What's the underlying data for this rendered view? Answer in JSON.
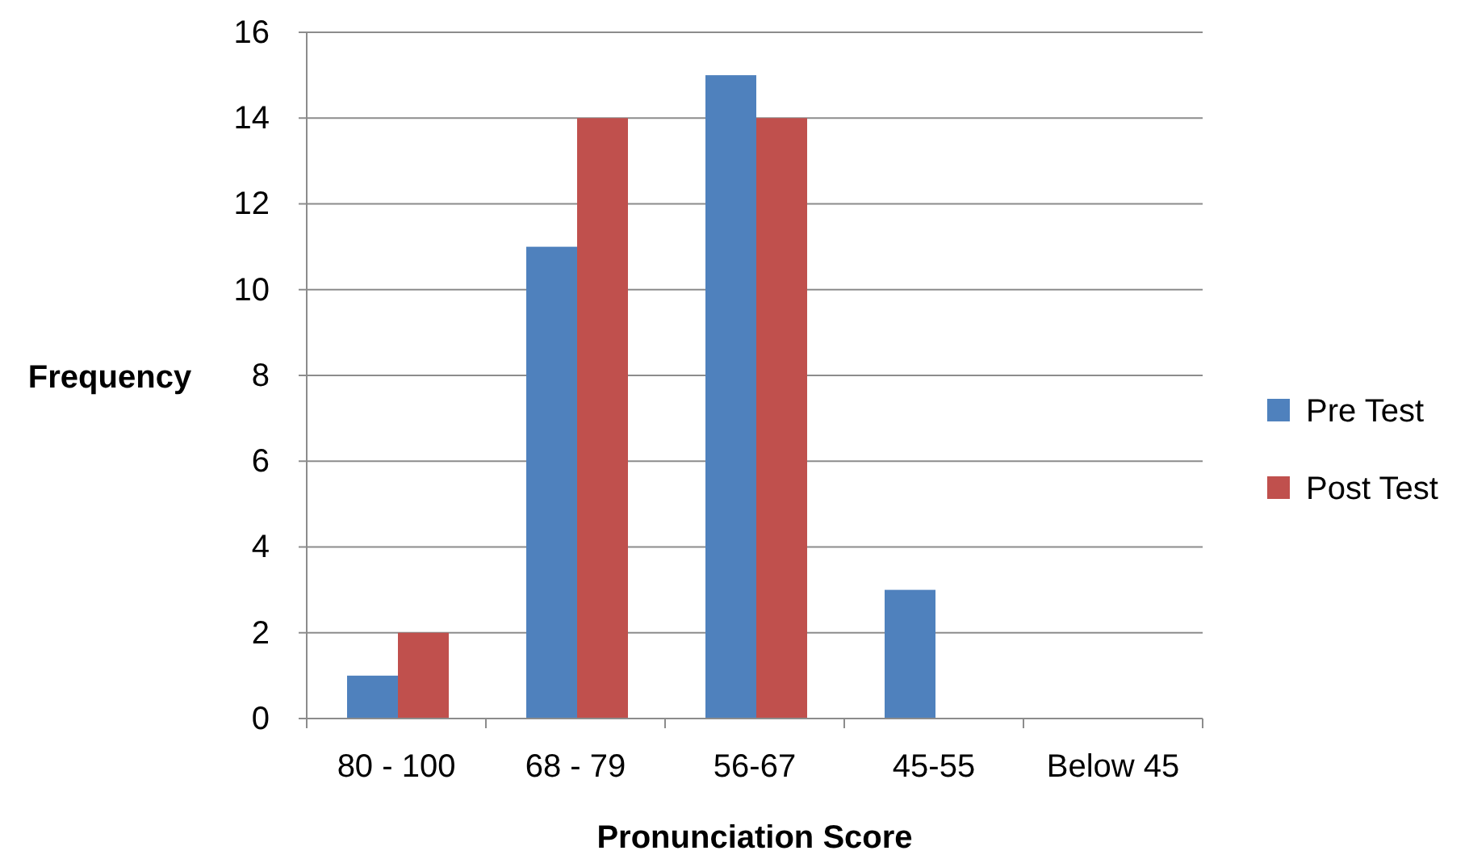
{
  "chart_data": {
    "type": "bar",
    "xlabel": "Pronunciation Score",
    "ylabel": "Frequency",
    "categories": [
      "80 - 100",
      "68 - 79",
      "56-67",
      "45-55",
      "Below 45"
    ],
    "series": [
      {
        "name": "Pre Test",
        "color": "#4f81bd",
        "values": [
          1,
          11,
          15,
          3,
          0
        ]
      },
      {
        "name": "Post Test",
        "color": "#c0504d",
        "values": [
          2,
          14,
          14,
          0,
          0
        ]
      }
    ],
    "ylim": [
      0,
      16
    ],
    "yticks": [
      0,
      2,
      4,
      6,
      8,
      10,
      12,
      14,
      16
    ],
    "grid": "y",
    "legend": "right"
  }
}
